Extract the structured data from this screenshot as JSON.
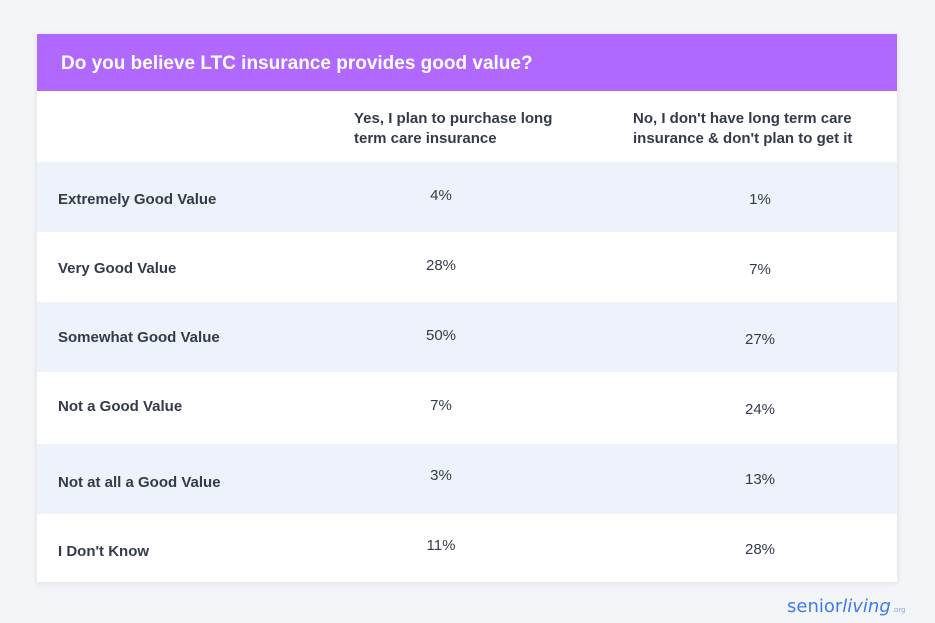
{
  "chart_data": {
    "type": "table",
    "title": "Do you believe LTC insurance provides good value?",
    "columns": [
      "Yes, I plan to purchase long term care insurance",
      "No, I don't have long term care insurance & don't plan to get it"
    ],
    "rows": [
      {
        "label": "Extremely Good Value",
        "values": [
          "4%",
          "1%"
        ]
      },
      {
        "label": "Very Good Value",
        "values": [
          "28%",
          "7%"
        ]
      },
      {
        "label": "Somewhat Good Value",
        "values": [
          "50%",
          "27%"
        ]
      },
      {
        "label": "Not a Good Value",
        "values": [
          "7%",
          "24%"
        ]
      },
      {
        "label": "Not at all a Good Value",
        "values": [
          "3%",
          "13%"
        ]
      },
      {
        "label": "I Don't Know",
        "values": [
          "11%",
          "28%"
        ]
      }
    ]
  },
  "brand": {
    "logo_senior": "senior",
    "logo_living": "living",
    "logo_tld": ".org"
  },
  "colors": {
    "header": "#b168ff",
    "row_shade": "#edf2fb",
    "text": "#333b4a",
    "logo": "#3d7be8"
  }
}
